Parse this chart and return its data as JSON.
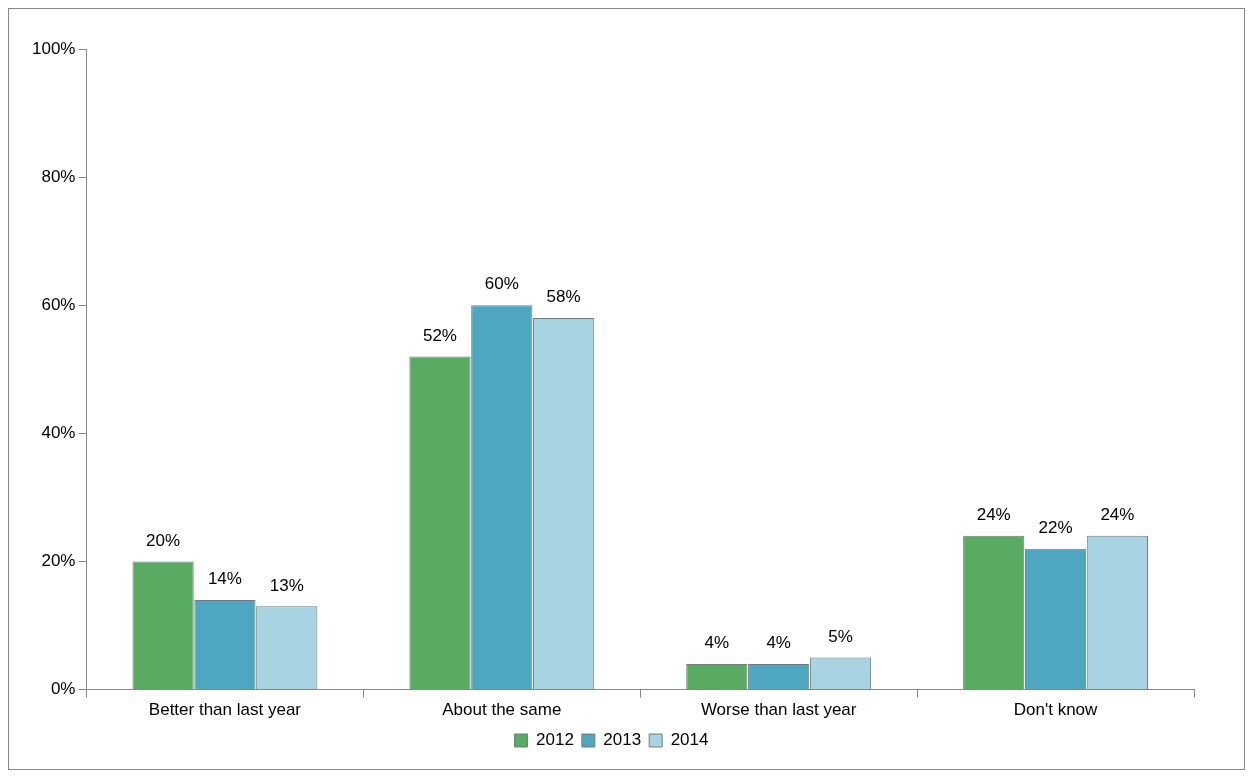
{
  "chart_data": {
    "type": "bar",
    "categories": [
      "Better than last year",
      "About the same",
      "Worse than last year",
      "Don't know"
    ],
    "series": [
      {
        "name": "2012",
        "color": "#5aab62",
        "values": [
          20,
          52,
          4,
          24
        ],
        "value_labels": [
          "20%",
          "52%",
          "4%",
          "24%"
        ]
      },
      {
        "name": "2013",
        "color": "#4fa6c0",
        "values": [
          14,
          60,
          4,
          22
        ],
        "value_labels": [
          "14%",
          "60%",
          "4%",
          "22%"
        ]
      },
      {
        "name": "2014",
        "color": "#a8d3e3",
        "values": [
          13,
          58,
          5,
          24
        ],
        "value_labels": [
          "13%",
          "58%",
          "5%",
          "24%"
        ]
      }
    ],
    "ylim": [
      0,
      100
    ],
    "yticks": [
      {
        "value": 0,
        "label": "0%"
      },
      {
        "value": 20,
        "label": "20%"
      },
      {
        "value": 40,
        "label": "40%"
      },
      {
        "value": 60,
        "label": "60%"
      },
      {
        "value": 80,
        "label": "80%"
      },
      {
        "value": 100,
        "label": "100%"
      }
    ],
    "grid": false,
    "legend": "bottom"
  }
}
